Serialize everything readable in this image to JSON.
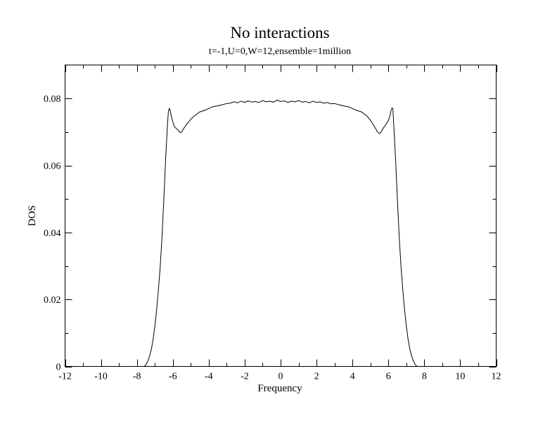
{
  "chart_data": {
    "type": "line",
    "title": "No interactions",
    "subtitle": "t=-1,U=0,W=12,ensemble=1million",
    "xlabel": "Frequency",
    "ylabel": "DOS",
    "xlim": [
      -12,
      12
    ],
    "ylim": [
      0,
      0.09
    ],
    "x_ticks": [
      -12,
      -10,
      -8,
      -6,
      -4,
      -2,
      0,
      2,
      4,
      6,
      8,
      10,
      12
    ],
    "x_tick_labels": [
      "-12",
      "-10",
      "-8",
      "-6",
      "-4",
      "-2",
      "0",
      "2",
      "4",
      "6",
      "8",
      "10",
      "12"
    ],
    "y_ticks": [
      0,
      0.02,
      0.04,
      0.06,
      0.08
    ],
    "y_tick_labels": [
      "0",
      "0.02",
      "0.04",
      "0.06",
      "0.08"
    ],
    "grid": false,
    "series": [
      {
        "x": [
          -12,
          -10,
          -8,
          -7.8,
          -7.6,
          -7.5,
          -7.4,
          -7.3,
          -7.2,
          -7.1,
          -7.0,
          -6.9,
          -6.8,
          -6.7,
          -6.6,
          -6.5,
          -6.4,
          -6.3,
          -6.25,
          -6.2,
          -6.15,
          -6.1,
          -6.0,
          -5.9,
          -5.8,
          -5.7,
          -5.6,
          -5.5,
          -5.4,
          -5.2,
          -5.0,
          -4.8,
          -4.5,
          -4.2,
          -4.0,
          -3.8,
          -3.5,
          -3.2,
          -3.0,
          -2.8,
          -2.6,
          -2.4,
          -2.2,
          -2.0,
          -1.8,
          -1.6,
          -1.4,
          -1.2,
          -1.0,
          -0.8,
          -0.6,
          -0.4,
          -0.2,
          0,
          0.2,
          0.4,
          0.6,
          0.8,
          1.0,
          1.2,
          1.4,
          1.6,
          1.8,
          2.0,
          2.2,
          2.4,
          2.6,
          2.8,
          3.0,
          3.2,
          3.5,
          3.8,
          4.0,
          4.2,
          4.5,
          4.8,
          5.0,
          5.2,
          5.4,
          5.5,
          5.6,
          5.7,
          5.8,
          5.9,
          6.0,
          6.1,
          6.15,
          6.2,
          6.25,
          6.3,
          6.4,
          6.5,
          6.6,
          6.7,
          6.8,
          6.9,
          7.0,
          7.1,
          7.2,
          7.3,
          7.4,
          7.5,
          7.6,
          7.8,
          8,
          10,
          12
        ],
        "y": [
          0,
          0,
          0,
          0,
          0,
          0.0005,
          0.0015,
          0.003,
          0.005,
          0.008,
          0.012,
          0.017,
          0.023,
          0.03,
          0.039,
          0.05,
          0.062,
          0.072,
          0.076,
          0.077,
          0.0765,
          0.075,
          0.073,
          0.0715,
          0.071,
          0.0705,
          0.0698,
          0.07,
          0.071,
          0.0725,
          0.0738,
          0.0748,
          0.076,
          0.0765,
          0.077,
          0.0775,
          0.0778,
          0.0782,
          0.0785,
          0.0786,
          0.079,
          0.0787,
          0.0792,
          0.0788,
          0.0793,
          0.0789,
          0.0791,
          0.0788,
          0.0794,
          0.079,
          0.0792,
          0.0789,
          0.0795,
          0.0791,
          0.0793,
          0.0788,
          0.0792,
          0.079,
          0.0794,
          0.0789,
          0.0791,
          0.0787,
          0.0792,
          0.0788,
          0.079,
          0.0786,
          0.0788,
          0.0784,
          0.0785,
          0.0782,
          0.0778,
          0.0775,
          0.077,
          0.0765,
          0.076,
          0.0748,
          0.0735,
          0.0718,
          0.07,
          0.0695,
          0.07,
          0.071,
          0.0718,
          0.0725,
          0.0735,
          0.075,
          0.0765,
          0.0772,
          0.077,
          0.072,
          0.062,
          0.05,
          0.039,
          0.03,
          0.023,
          0.017,
          0.012,
          0.008,
          0.005,
          0.003,
          0.0015,
          0.0005,
          0,
          0,
          0,
          0,
          0
        ]
      }
    ]
  }
}
